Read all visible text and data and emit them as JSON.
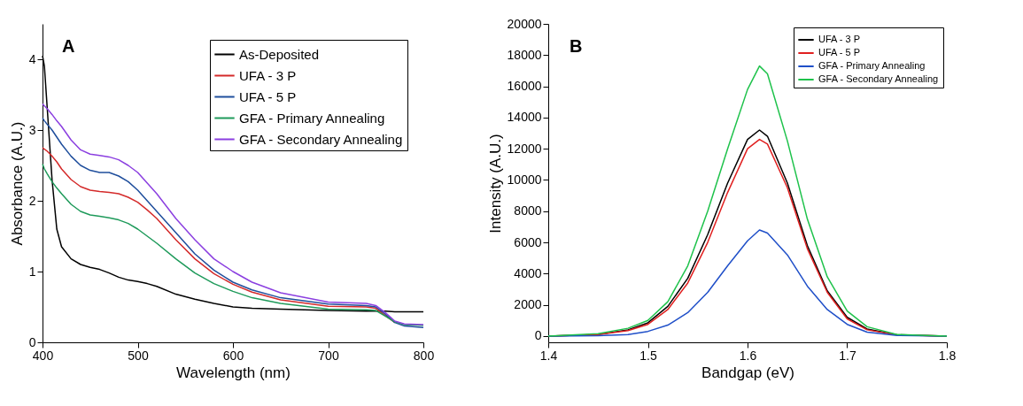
{
  "chart_data": [
    {
      "type": "line",
      "xlabel": "Wavelength (nm)",
      "ylabel": "Absorbance (A.U.)",
      "annotations": [
        "A"
      ],
      "xlim": [
        400,
        800
      ],
      "xticks": [
        400,
        500,
        600,
        700,
        800
      ],
      "ylim": [
        0,
        4.5
      ],
      "yticks": [
        0,
        1,
        2,
        3,
        4
      ],
      "grid": false,
      "legend": "top right",
      "x": [
        400,
        402,
        405,
        410,
        415,
        420,
        430,
        440,
        450,
        460,
        470,
        480,
        490,
        500,
        510,
        520,
        540,
        560,
        580,
        600,
        620,
        650,
        700,
        740,
        750,
        760,
        770,
        780,
        800
      ],
      "series": [
        {
          "name": "As-Deposited",
          "color": "#000000",
          "values": [
            4.05,
            3.9,
            3.3,
            2.3,
            1.6,
            1.35,
            1.18,
            1.1,
            1.06,
            1.03,
            0.98,
            0.92,
            0.88,
            0.86,
            0.83,
            0.79,
            0.68,
            0.61,
            0.55,
            0.5,
            0.48,
            0.47,
            0.45,
            0.44,
            0.44,
            0.44,
            0.43,
            0.43,
            0.43
          ]
        },
        {
          "name": "UFA - 3 P",
          "color": "#d42a2a",
          "values": [
            2.75,
            2.73,
            2.7,
            2.63,
            2.55,
            2.45,
            2.3,
            2.2,
            2.15,
            2.13,
            2.12,
            2.1,
            2.05,
            1.98,
            1.87,
            1.75,
            1.45,
            1.18,
            0.97,
            0.82,
            0.71,
            0.6,
            0.51,
            0.5,
            0.48,
            0.38,
            0.28,
            null,
            null
          ]
        },
        {
          "name": "UFA - 5 P",
          "color": "#1f4e9c",
          "values": [
            3.17,
            3.13,
            3.08,
            3.0,
            2.9,
            2.8,
            2.63,
            2.5,
            2.43,
            2.4,
            2.4,
            2.35,
            2.27,
            2.15,
            2.0,
            1.85,
            1.55,
            1.25,
            1.02,
            0.85,
            0.74,
            0.63,
            0.54,
            0.52,
            0.5,
            0.4,
            0.28,
            0.23,
            0.21
          ]
        },
        {
          "name": "GFA - Primary Annealing",
          "color": "#1e9a5a",
          "values": [
            2.52,
            2.45,
            2.38,
            2.27,
            2.18,
            2.1,
            1.95,
            1.85,
            1.8,
            1.78,
            1.76,
            1.73,
            1.68,
            1.6,
            1.5,
            1.4,
            1.18,
            0.98,
            0.83,
            0.72,
            0.63,
            0.55,
            0.47,
            0.46,
            0.45,
            0.37,
            0.29,
            0.25,
            0.24
          ]
        },
        {
          "name": "GFA - Secondary Annealing",
          "color": "#8b3fe0",
          "values": [
            3.37,
            3.34,
            3.3,
            3.22,
            3.13,
            3.05,
            2.86,
            2.72,
            2.66,
            2.64,
            2.62,
            2.58,
            2.5,
            2.4,
            2.25,
            2.1,
            1.75,
            1.45,
            1.18,
            1.0,
            0.85,
            0.7,
            0.57,
            0.55,
            0.52,
            0.42,
            0.3,
            0.26,
            0.25
          ]
        }
      ]
    },
    {
      "type": "line",
      "xlabel": "Bandgap (eV)",
      "ylabel": "Intensity (A.U.)",
      "annotations": [
        "B"
      ],
      "xlim": [
        1.4,
        1.8
      ],
      "xticks": [
        1.4,
        1.5,
        1.6,
        1.7,
        1.8
      ],
      "ylim": [
        -400,
        20000
      ],
      "yticks": [
        0,
        2000,
        4000,
        6000,
        8000,
        10000,
        12000,
        14000,
        16000,
        18000,
        20000
      ],
      "grid": false,
      "legend": "top right",
      "x": [
        1.4,
        1.45,
        1.48,
        1.5,
        1.52,
        1.54,
        1.56,
        1.58,
        1.6,
        1.612,
        1.62,
        1.64,
        1.66,
        1.68,
        1.7,
        1.72,
        1.75,
        1.8
      ],
      "series": [
        {
          "name": "UFA - 3 P",
          "color": "#000000",
          "values": [
            0,
            100,
            400,
            850,
            1900,
            3700,
            6500,
            9800,
            12600,
            13200,
            12800,
            9800,
            5800,
            2900,
            1200,
            450,
            80,
            0
          ]
        },
        {
          "name": "UFA - 5 P",
          "color": "#e02020",
          "values": [
            0,
            100,
            350,
            750,
            1700,
            3400,
            6000,
            9200,
            12000,
            12600,
            12300,
            9500,
            5600,
            2800,
            1100,
            400,
            70,
            0
          ]
        },
        {
          "name": "GFA - Primary Annealing",
          "color": "#1f4fc8",
          "values": [
            0,
            30,
            100,
            300,
            700,
            1500,
            2800,
            4500,
            6100,
            6800,
            6600,
            5200,
            3200,
            1700,
            750,
            250,
            40,
            0
          ]
        },
        {
          "name": "GFA - Secondary Annealing",
          "color": "#1ec24b",
          "values": [
            0,
            150,
            500,
            1000,
            2200,
            4500,
            8000,
            12000,
            15800,
            17300,
            16800,
            12500,
            7500,
            3800,
            1600,
            600,
            100,
            0
          ]
        }
      ]
    }
  ]
}
